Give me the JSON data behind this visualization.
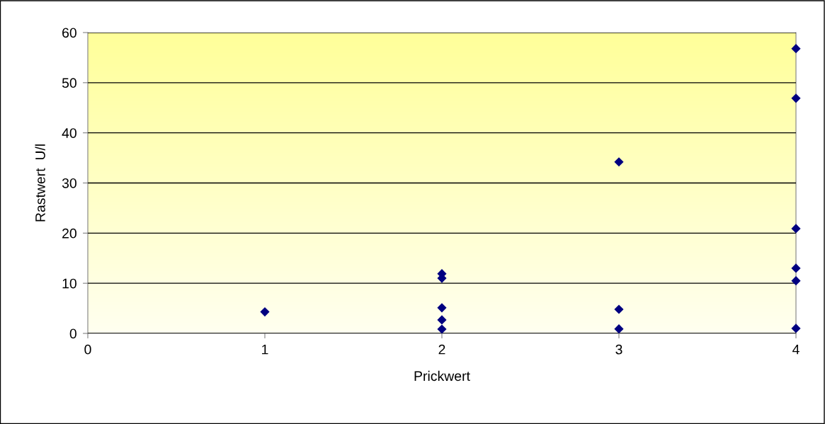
{
  "chart_data": {
    "type": "scatter",
    "xlabel": "Prickwert",
    "ylabel": "Rastwert  U/l",
    "x": [
      1,
      2,
      2,
      2,
      2,
      2,
      3,
      3,
      3,
      4,
      4,
      4,
      4,
      4,
      4
    ],
    "values": [
      4.3,
      11.9,
      11.0,
      5.1,
      2.7,
      0.85,
      34.2,
      4.8,
      0.9,
      56.8,
      46.9,
      20.9,
      13.0,
      10.5,
      1.0
    ],
    "color": "#000080",
    "marker": "diamond",
    "xlim": [
      0,
      4
    ],
    "xticks": [
      0,
      1,
      2,
      3,
      4
    ],
    "ylim": [
      0,
      60
    ],
    "yticks": [
      0,
      10,
      20,
      30,
      40,
      50,
      60
    ],
    "grid": "y",
    "legend": false
  }
}
